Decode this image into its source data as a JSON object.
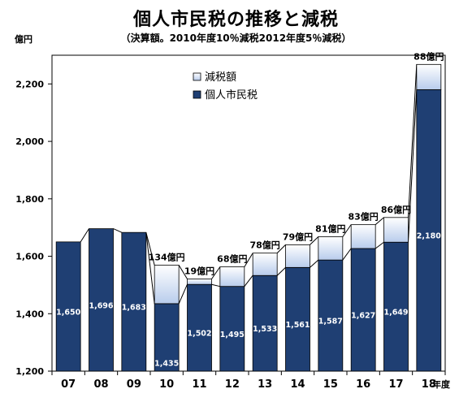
{
  "header": {
    "title": "個人市民税の推移と減税",
    "subtitle": "（決算額。2010年度10％減税2012年度5％減税）",
    "y_unit": "億円",
    "x_unit": "年度"
  },
  "colors": {
    "main_bar": "#1f3f73",
    "reduction_bar": "#b8ccec",
    "bar_edge": "#000000"
  },
  "chart_data": {
    "type": "bar",
    "title": "個人市民税の推移と減税",
    "subtitle": "（決算額。2010年度10％減税2012年度5％減税）",
    "ylabel": "億円",
    "xlabel": "年度",
    "ylim": [
      1200,
      2300
    ],
    "yticks": [
      1200,
      1400,
      1600,
      1800,
      2000,
      2200
    ],
    "ytick_labels": [
      "1,200",
      "1,400",
      "1,600",
      "1,800",
      "2,000",
      "2,200"
    ],
    "categories": [
      "07",
      "08",
      "09",
      "10",
      "11",
      "12",
      "13",
      "14",
      "15",
      "16",
      "17",
      "18"
    ],
    "grid": false,
    "legend_position": "top-center",
    "series": [
      {
        "name": "個人市民税",
        "values": [
          1650,
          1696,
          1683,
          1435,
          1502,
          1495,
          1533,
          1561,
          1587,
          1627,
          1649,
          2180
        ],
        "labels": [
          "1,650",
          "1,696",
          "1,683",
          "1,435",
          "1,502",
          "1,495",
          "1,533",
          "1,561",
          "1,587",
          "1,627",
          "1,649",
          "2,180"
        ]
      },
      {
        "name": "減税額",
        "values": [
          null,
          null,
          null,
          134,
          19,
          68,
          78,
          79,
          81,
          83,
          86,
          88
        ],
        "labels": [
          "",
          "",
          "",
          "134億円",
          "19億円",
          "68億円",
          "78億円",
          "79億円",
          "81億円",
          "83億円",
          "86億円",
          "88億円"
        ]
      }
    ]
  }
}
